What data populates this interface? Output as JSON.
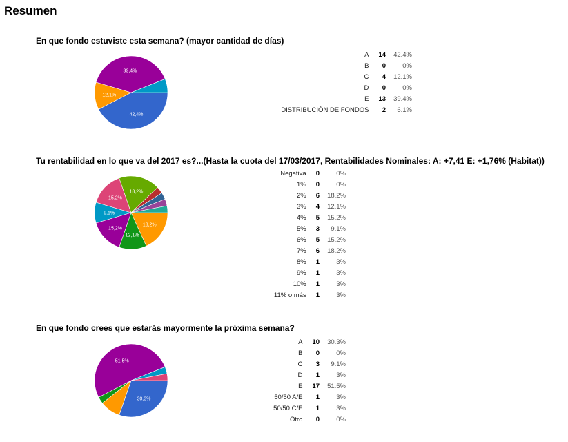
{
  "page": {
    "title": "Resumen"
  },
  "questions": [
    {
      "title": "En que fondo estuviste esta semana? (mayor cantidad de días)",
      "rows": [
        {
          "label": "A",
          "count": "14",
          "pct": "42.4%"
        },
        {
          "label": "B",
          "count": "0",
          "pct": "0%"
        },
        {
          "label": "C",
          "count": "4",
          "pct": "12.1%"
        },
        {
          "label": "D",
          "count": "0",
          "pct": "0%"
        },
        {
          "label": "E",
          "count": "13",
          "pct": "39.4%"
        },
        {
          "label": "DISTRIBUCIÓN DE FONDOS",
          "count": "2",
          "pct": "6.1%"
        }
      ]
    },
    {
      "title": "Tu rentabilidad en lo que va del 2017 es?...(Hasta la cuota del 17/03/2017, Rentabilidades Nominales: A: +7,41 E: +1,76% (Habitat))",
      "rows": [
        {
          "label": "Negativa",
          "count": "0",
          "pct": "0%"
        },
        {
          "label": "1%",
          "count": "0",
          "pct": "0%"
        },
        {
          "label": "2%",
          "count": "6",
          "pct": "18.2%"
        },
        {
          "label": "3%",
          "count": "4",
          "pct": "12.1%"
        },
        {
          "label": "4%",
          "count": "5",
          "pct": "15.2%"
        },
        {
          "label": "5%",
          "count": "3",
          "pct": "9.1%"
        },
        {
          "label": "6%",
          "count": "5",
          "pct": "15.2%"
        },
        {
          "label": "7%",
          "count": "6",
          "pct": "18.2%"
        },
        {
          "label": "8%",
          "count": "1",
          "pct": "3%"
        },
        {
          "label": "9%",
          "count": "1",
          "pct": "3%"
        },
        {
          "label": "10%",
          "count": "1",
          "pct": "3%"
        },
        {
          "label": "11% o más",
          "count": "1",
          "pct": "3%"
        }
      ]
    },
    {
      "title": "En que fondo crees que estarás mayormente la próxima semana?",
      "rows": [
        {
          "label": "A",
          "count": "10",
          "pct": "30.3%"
        },
        {
          "label": "B",
          "count": "0",
          "pct": "0%"
        },
        {
          "label": "C",
          "count": "3",
          "pct": "9.1%"
        },
        {
          "label": "D",
          "count": "1",
          "pct": "3%"
        },
        {
          "label": "E",
          "count": "17",
          "pct": "51.5%"
        },
        {
          "label": "50/50 A/E",
          "count": "1",
          "pct": "3%"
        },
        {
          "label": "50/50 C/E",
          "count": "1",
          "pct": "3%"
        },
        {
          "label": "Otro",
          "count": "0",
          "pct": "0%"
        }
      ]
    }
  ],
  "chart_data": [
    {
      "type": "pie",
      "title": "En que fondo estuviste esta semana? (mayor cantidad de días)",
      "categories": [
        "A",
        "B",
        "C",
        "D",
        "E",
        "DISTRIBUCIÓN DE FONDOS"
      ],
      "values": [
        14,
        0,
        4,
        0,
        13,
        2
      ],
      "colors": [
        "#3366cc",
        "#dc3912",
        "#ff9900",
        "#109618",
        "#990099",
        "#0099c6"
      ],
      "slice_labels": [
        "42,4%",
        "",
        "12,1%",
        "",
        "39,4%",
        ""
      ]
    },
    {
      "type": "pie",
      "title": "Tu rentabilidad en lo que va del 2017 es?...(Hasta la cuota del 17/03/2017, Rentabilidades Nominales: A: +7,41 E: +1,76% (Habitat))",
      "categories": [
        "Negativa",
        "1%",
        "2%",
        "3%",
        "4%",
        "5%",
        "6%",
        "7%",
        "8%",
        "9%",
        "10%",
        "11% o más"
      ],
      "values": [
        0,
        0,
        6,
        4,
        5,
        3,
        5,
        6,
        1,
        1,
        1,
        1
      ],
      "colors": [
        "#3366cc",
        "#dc3912",
        "#ff9900",
        "#109618",
        "#990099",
        "#0099c6",
        "#dd4477",
        "#66aa00",
        "#b82e2e",
        "#316395",
        "#994499",
        "#22aa99"
      ],
      "slice_labels": [
        "",
        "",
        "18,2%",
        "12,1%",
        "15,2%",
        "9,1%",
        "15,2%",
        "18,2%",
        "",
        "",
        "",
        ""
      ]
    },
    {
      "type": "pie",
      "title": "En que fondo crees que estarás mayormente la próxima semana?",
      "categories": [
        "A",
        "B",
        "C",
        "D",
        "E",
        "50/50 A/E",
        "50/50 C/E",
        "Otro"
      ],
      "values": [
        10,
        0,
        3,
        1,
        17,
        1,
        1,
        0
      ],
      "colors": [
        "#3366cc",
        "#dc3912",
        "#ff9900",
        "#109618",
        "#990099",
        "#0099c6",
        "#dd4477",
        "#66aa00"
      ],
      "slice_labels": [
        "30,3%",
        "",
        "",
        "",
        "51,5%",
        "",
        "",
        ""
      ]
    }
  ]
}
